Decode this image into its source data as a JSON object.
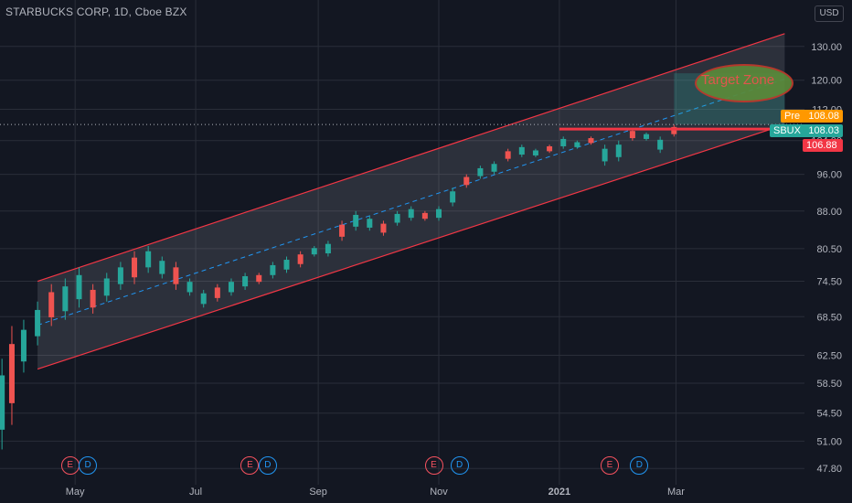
{
  "header": {
    "title": "STARBUCKS CORP, 1D, Cboe BZX"
  },
  "currency_button": "USD",
  "annotations": {
    "target_zone": "Target Zone"
  },
  "price_tags": {
    "pre": {
      "label": "Pre",
      "value": "108.08"
    },
    "sbux": {
      "label": "SBUX",
      "value": "108.03"
    },
    "support": {
      "value": "106.88"
    }
  },
  "events": [
    {
      "type": "E",
      "date": "2020-04-28"
    },
    {
      "type": "D",
      "date": "2020-05-07"
    },
    {
      "type": "E",
      "date": "2020-07-28"
    },
    {
      "type": "D",
      "date": "2020-08-06"
    },
    {
      "type": "E",
      "date": "2020-10-29"
    },
    {
      "type": "D",
      "date": "2020-11-11"
    },
    {
      "type": "E",
      "date": "2021-01-26"
    },
    {
      "type": "D",
      "date": "2021-02-10"
    }
  ],
  "colors": {
    "up": "#26a69a",
    "down": "#ef5350",
    "channel": "#f23645",
    "background": "#131722"
  },
  "chart_data": {
    "type": "candlestick",
    "title": "STARBUCKS CORP, 1D, Cboe BZX",
    "y_ticks": [
      "130.00",
      "120.00",
      "112.00",
      "104.00",
      "96.00",
      "88.00",
      "80.50",
      "74.50",
      "68.50",
      "62.50",
      "58.50",
      "54.50",
      "51.00",
      "47.80"
    ],
    "y_scale": "log",
    "ylim": [
      47,
      136
    ],
    "x_ticks": [
      {
        "label": "May",
        "date": "2020-05-01"
      },
      {
        "label": "Jul",
        "date": "2020-07-01"
      },
      {
        "label": "Sep",
        "date": "2020-09-01"
      },
      {
        "label": "Nov",
        "date": "2020-11-01"
      },
      {
        "label": "2021",
        "date": "2021-01-01"
      },
      {
        "label": "Mar",
        "date": "2021-03-01"
      }
    ],
    "xlim": [
      "2020-03-24",
      "2021-05-05"
    ],
    "series": [
      {
        "name": "SBUX",
        "points": [
          [
            "2020-03-25",
            62,
            50
          ],
          [
            "2020-03-30",
            67,
            53
          ],
          [
            "2020-04-05",
            68,
            60
          ],
          [
            "2020-04-12",
            71,
            64
          ],
          [
            "2020-04-19",
            74,
            67
          ],
          [
            "2020-04-26",
            75,
            68
          ],
          [
            "2020-05-03",
            77,
            70
          ],
          [
            "2020-05-10",
            74,
            69
          ],
          [
            "2020-05-17",
            76,
            71
          ],
          [
            "2020-05-24",
            78,
            73
          ],
          [
            "2020-05-31",
            80,
            74
          ],
          [
            "2020-06-07",
            81,
            76
          ],
          [
            "2020-06-14",
            79,
            75
          ],
          [
            "2020-06-21",
            78,
            73
          ],
          [
            "2020-06-28",
            75,
            72
          ],
          [
            "2020-07-05",
            73,
            70
          ],
          [
            "2020-07-12",
            74,
            71
          ],
          [
            "2020-07-19",
            75,
            72
          ],
          [
            "2020-07-26",
            76,
            73
          ],
          [
            "2020-08-02",
            76,
            74
          ],
          [
            "2020-08-09",
            78,
            75
          ],
          [
            "2020-08-16",
            79,
            76
          ],
          [
            "2020-08-23",
            80,
            77
          ],
          [
            "2020-08-30",
            81,
            79
          ],
          [
            "2020-09-06",
            82,
            79
          ],
          [
            "2020-09-13",
            86,
            82
          ],
          [
            "2020-09-20",
            88,
            84
          ],
          [
            "2020-09-27",
            87,
            84
          ],
          [
            "2020-10-04",
            86,
            83
          ],
          [
            "2020-10-11",
            88,
            85
          ],
          [
            "2020-10-18",
            89,
            86
          ],
          [
            "2020-10-25",
            88,
            86
          ],
          [
            "2020-11-01",
            89,
            86
          ],
          [
            "2020-11-08",
            93,
            89
          ],
          [
            "2020-11-15",
            96,
            93
          ],
          [
            "2020-11-22",
            98,
            95
          ],
          [
            "2020-11-29",
            99,
            96
          ],
          [
            "2020-12-06",
            102,
            99
          ],
          [
            "2020-12-13",
            103,
            100
          ],
          [
            "2020-12-20",
            102,
            100
          ],
          [
            "2020-12-27",
            103,
            101
          ],
          [
            "2021-01-03",
            105,
            102
          ],
          [
            "2021-01-10",
            104,
            102
          ],
          [
            "2021-01-17",
            105,
            103
          ],
          [
            "2021-01-24",
            103,
            98
          ],
          [
            "2021-01-31",
            104,
            99
          ],
          [
            "2021-02-07",
            107,
            104
          ],
          [
            "2021-02-14",
            106,
            104
          ],
          [
            "2021-02-21",
            105,
            101
          ],
          [
            "2021-02-28",
            108,
            105
          ]
        ]
      }
    ],
    "channel": {
      "start": "2020-04-12",
      "end": "2021-04-25",
      "upper_start": 74.5,
      "upper_end": 134,
      "lower_start": 60.5,
      "lower_end": 108,
      "mid_label": ""
    },
    "levels": {
      "last": 108.03,
      "pre": 108.08,
      "support": 106.88
    }
  }
}
